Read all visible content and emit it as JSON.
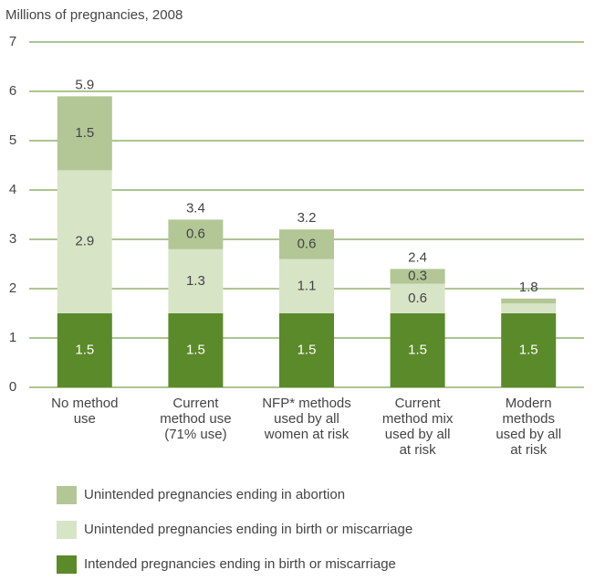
{
  "chart_data": {
    "type": "stacked_bar",
    "y_axis_label": "Millions of pregnancies, 2008",
    "categories": [
      "No method\nuse",
      "Current\nmethod use\n(71% use)",
      "NFP* methods\nused by all\nwomen at risk",
      "Current\nmethod mix\nused by all\nat risk",
      "Modern\nmethods\nused by all\nat risk"
    ],
    "series": [
      {
        "name": "Intended pregnancies ending in birth or miscarriage",
        "color": "#5b8a2a",
        "values": [
          1.5,
          1.5,
          1.5,
          1.5,
          1.5
        ]
      },
      {
        "name": "Unintended pregnancies ending in birth or miscarriage",
        "color": "#d8e4c6",
        "values": [
          2.9,
          1.3,
          1.1,
          0.6,
          0.2
        ],
        "value_labels": [
          "2.9",
          "1.3",
          "1.1",
          "0.6",
          null
        ]
      },
      {
        "name": "Unintended pregnancies ending in abortion",
        "color": "#b2c795",
        "values": [
          1.5,
          0.6,
          0.6,
          0.3,
          0.1
        ],
        "value_labels": [
          "1.5",
          "0.6",
          "0.6",
          "0.3",
          null
        ]
      }
    ],
    "totals": [
      5.9,
      3.4,
      3.2,
      2.4,
      1.8
    ],
    "ylim": [
      0,
      7
    ],
    "yticks": [
      0,
      1,
      2,
      3,
      4,
      5,
      6,
      7
    ],
    "grid": true,
    "grid_color": "#5b8a2a"
  }
}
